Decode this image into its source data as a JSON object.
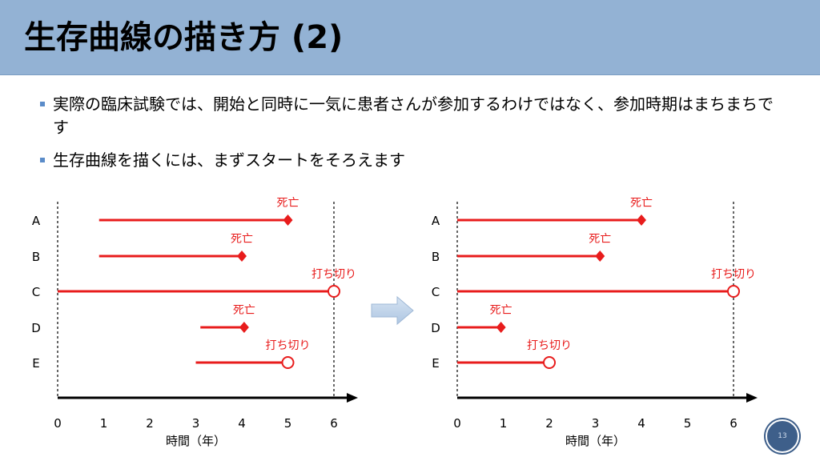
{
  "title": "生存曲線の描き方 (2)",
  "bullets": [
    {
      "text": "実際の臨床試験では、開始と同時に一気に患者さんが参加するわけではなく、参加時期はまちまちです"
    },
    {
      "text": "生存曲線を描くには、まずスタートをそろえます"
    }
  ],
  "colors": {
    "accent": "#e81c1c",
    "title_bg": "#93b2d4",
    "arrow": "#c3d5ea"
  },
  "diagrams": [
    {
      "xlabel": "時間（年）",
      "ticks": [
        "0",
        "1",
        "2",
        "3",
        "4",
        "5",
        "6"
      ],
      "rows": [
        {
          "name": "A",
          "start": 0.9,
          "end": 5.0,
          "event": "death",
          "label": "死亡"
        },
        {
          "name": "B",
          "start": 0.9,
          "end": 4.0,
          "event": "death",
          "label": "死亡"
        },
        {
          "name": "C",
          "start": 0.0,
          "end": 6.0,
          "event": "censored",
          "label": "打ち切り"
        },
        {
          "name": "D",
          "start": 3.1,
          "end": 4.05,
          "event": "death",
          "label": "死亡"
        },
        {
          "name": "E",
          "start": 3.0,
          "end": 5.0,
          "event": "censored",
          "label": "打ち切り"
        }
      ]
    },
    {
      "xlabel": "時間（年）",
      "ticks": [
        "0",
        "1",
        "2",
        "3",
        "4",
        "5",
        "6"
      ],
      "rows": [
        {
          "name": "A",
          "start": 0.0,
          "end": 4.0,
          "event": "death",
          "label": "死亡"
        },
        {
          "name": "B",
          "start": 0.0,
          "end": 3.1,
          "event": "death",
          "label": "死亡"
        },
        {
          "name": "C",
          "start": 0.0,
          "end": 6.0,
          "event": "censored",
          "label": "打ち切り"
        },
        {
          "name": "D",
          "start": 0.0,
          "end": 0.95,
          "event": "death",
          "label": "死亡"
        },
        {
          "name": "E",
          "start": 0.0,
          "end": 2.0,
          "event": "censored",
          "label": "打ち切り"
        }
      ]
    }
  ],
  "page_number": "13"
}
